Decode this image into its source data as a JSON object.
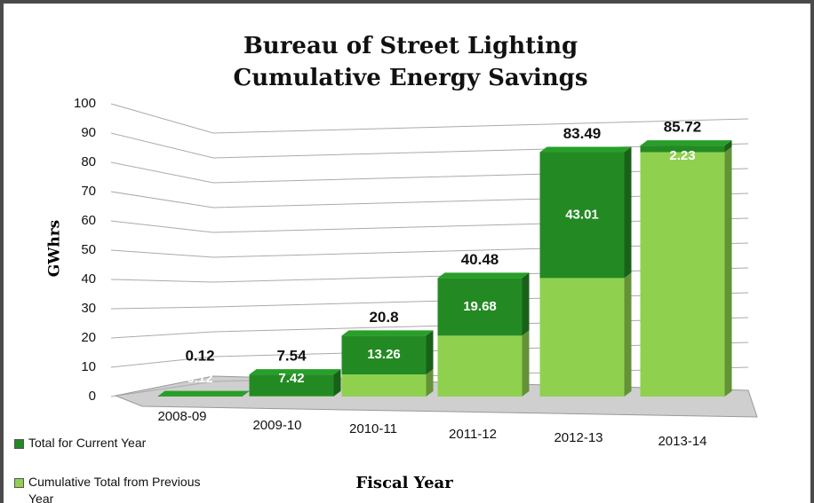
{
  "chart_data": {
    "type": "bar3d_stacked",
    "title": "Bureau of Street Lighting\nCumulative Energy Savings",
    "y_label": "GWhrs",
    "x_label": "Fiscal Year",
    "categories": [
      "2008-09",
      "2009-10",
      "2010-11",
      "2011-12",
      "2012-13",
      "2013-14"
    ],
    "series": [
      {
        "name": "Total for Current Year",
        "color": "#238a23",
        "data_labels": true,
        "values": [
          0.12,
          7.42,
          13.26,
          19.68,
          43.01,
          2.23
        ]
      },
      {
        "name": "Cumulative Total from Previous Year",
        "color": "#8fd14f",
        "data_labels": false,
        "values": [
          0,
          0.12,
          7.54,
          20.8,
          40.48,
          83.49
        ]
      }
    ],
    "totals": [
      0.12,
      7.54,
      20.8,
      40.48,
      83.49,
      85.72
    ],
    "ylim": [
      0,
      100
    ],
    "yticks": [
      0,
      10,
      20,
      30,
      40,
      50,
      60,
      70,
      80,
      90,
      100
    ],
    "grid": true
  }
}
